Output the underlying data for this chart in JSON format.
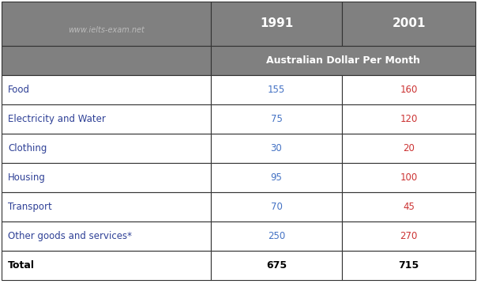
{
  "header_bg_color": "#808080",
  "header_text_color": "#ffffff",
  "subheader_bg_color": "#808080",
  "subheader_text_color": "#ffffff",
  "row_bg_color": "#ffffff",
  "border_color": "#333333",
  "category_text_color": "#2e4096",
  "total_category_color": "#000000",
  "value_color_1991": "#4472c4",
  "value_color_2001": "#cc3333",
  "total_value_color": "#000000",
  "watermark_color": "#bbbbbb",
  "col1_header": "1991",
  "col2_header": "2001",
  "subheader": "Australian Dollar Per Month",
  "watermark": "www.ielts-exam.net",
  "categories": [
    "Food",
    "Electricity and Water",
    "Clothing",
    "Housing",
    "Transport",
    "Other goods and services*"
  ],
  "values_1991": [
    "155",
    "75",
    "30",
    "95",
    "70",
    "250"
  ],
  "values_2001": [
    "160",
    "120",
    "20",
    "100",
    "45",
    "270"
  ],
  "total_label": "Total",
  "total_1991": "675",
  "total_2001": "715",
  "fig_width": 6.04,
  "fig_height": 3.59,
  "dpi": 100
}
